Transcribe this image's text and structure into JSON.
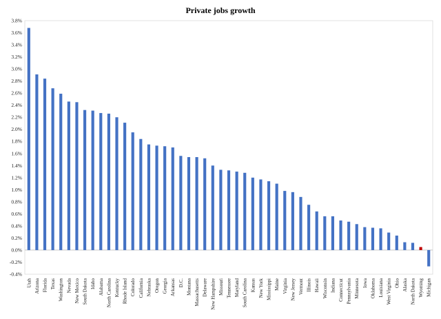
{
  "chart_data": {
    "type": "bar",
    "title": "Private jobs growth",
    "xlabel": "",
    "ylabel": "",
    "ylim": [
      -0.4,
      3.8
    ],
    "yticks": [
      "-0.4%",
      "-0.2%",
      "0.0%",
      "0.2%",
      "0.4%",
      "0.6%",
      "0.8%",
      "1.0%",
      "1.2%",
      "1.4%",
      "1.6%",
      "1.8%",
      "2.0%",
      "2.2%",
      "2.4%",
      "2.6%",
      "2.8%",
      "3.0%",
      "3.2%",
      "3.4%",
      "3.6%",
      "3.8%"
    ],
    "grid": false,
    "legend": "none",
    "colors": {
      "default": "#4472C4",
      "highlight": "#C00000"
    },
    "highlight_category": "Wyoming",
    "categories": [
      "Utah",
      "Arizona",
      "Florida",
      "Texas",
      "Washington",
      "Nevada",
      "New Mexico",
      "South Dakota",
      "Idaho",
      "Alabama",
      "North Carolina",
      "Kentucky",
      "Rhode Island",
      "Colorado",
      "California",
      "Nebraska",
      "Oregon",
      "Georgia",
      "Arkansas",
      "D.C.",
      "Montana",
      "Massachusetts",
      "Delaware",
      "New Hampshire",
      "Missouri",
      "Tennessee",
      "Maryland",
      "South Carolina",
      "Kansas",
      "New York",
      "Mississippi",
      "Maine",
      "Virginia",
      "New Jersey",
      "Vermont",
      "Illinois",
      "Hawaii",
      "Wisconsin",
      "Indiana",
      "Connecticut",
      "Pennsylvania",
      "Minnesota",
      "Iowa",
      "Oklahoma",
      "Louisiana",
      "West Virginia",
      "Ohio",
      "Alaska",
      "North Dakota",
      "Wyoming",
      "Michigan"
    ],
    "values": [
      3.68,
      2.91,
      2.84,
      2.68,
      2.59,
      2.46,
      2.45,
      2.32,
      2.31,
      2.27,
      2.26,
      2.2,
      2.11,
      1.95,
      1.84,
      1.75,
      1.73,
      1.72,
      1.7,
      1.56,
      1.54,
      1.54,
      1.52,
      1.4,
      1.33,
      1.32,
      1.3,
      1.28,
      1.2,
      1.17,
      1.14,
      1.1,
      0.98,
      0.96,
      0.88,
      0.75,
      0.64,
      0.56,
      0.56,
      0.49,
      0.47,
      0.43,
      0.38,
      0.37,
      0.36,
      0.29,
      0.24,
      0.13,
      0.12,
      0.05,
      -0.27
    ]
  }
}
